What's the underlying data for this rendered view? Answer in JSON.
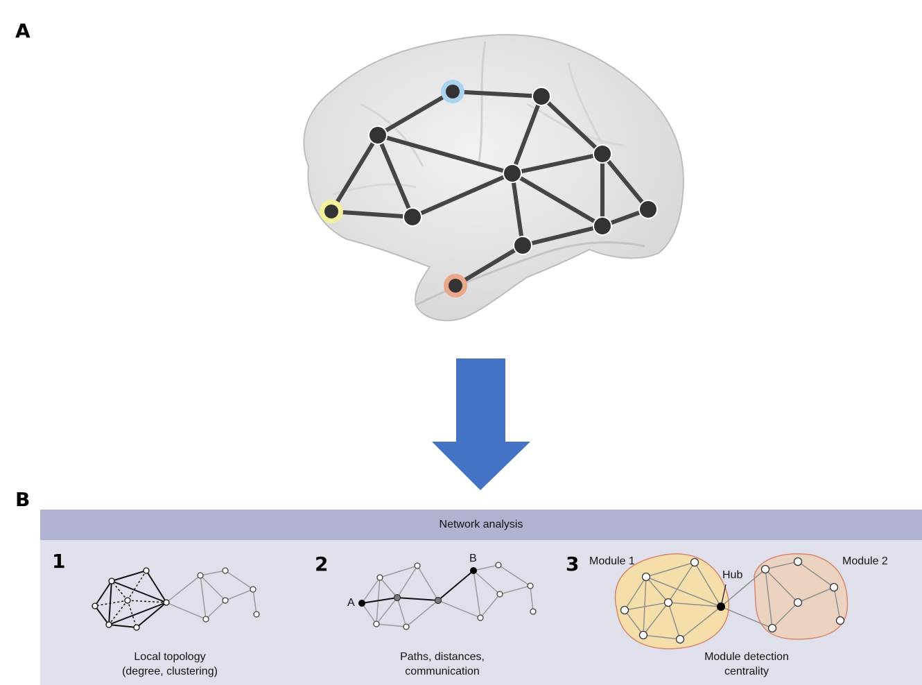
{
  "panel_a": {
    "label": "A"
  },
  "panel_b": {
    "label": "B"
  },
  "network_analysis": {
    "title": "Network analysis",
    "items": [
      {
        "number": "1",
        "caption_line1": "Local topology",
        "caption_line2": "(degree, clustering)"
      },
      {
        "number": "2",
        "caption_line1": "Paths, distances,",
        "caption_line2": "communication",
        "node_a": "A",
        "node_b": "B"
      },
      {
        "number": "3",
        "caption_line1": "Module detection",
        "caption_line2": "centrality",
        "module_1": "Module 1",
        "module_2": "Module 2",
        "hub": "Hub"
      }
    ]
  },
  "colors": {
    "arrow": "#4472c4",
    "header": "#b1b1d1",
    "panel_bg": "#e0e0ec",
    "node_blue_halo": "#a9d3ef",
    "node_yellow_halo": "#f3ef9a",
    "node_orange_halo": "#eba789",
    "module_1_fill": "#f5deaa",
    "module_2_fill": "#ecd2c0"
  }
}
